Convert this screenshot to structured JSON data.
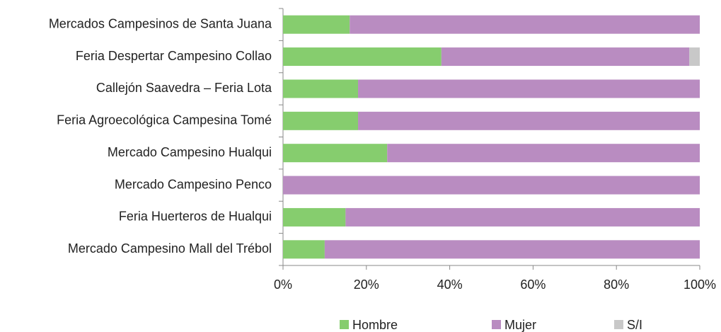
{
  "chart_data": {
    "type": "stacked-barh",
    "categories": [
      "Mercados Campesinos de Santa Juana",
      "Feria Despertar Campesino Collao",
      "Callejón Saavedra – Feria Lota",
      "Feria Agroecológica Campesina Tomé",
      "Mercado Campesino Hualqui",
      "Mercado Campesino Penco",
      "Feria Huerteros de Hualqui",
      "Mercado Campesino Mall del Trébol"
    ],
    "series": [
      {
        "name": "Hombre",
        "color": "#86cd6e",
        "values": [
          16,
          38,
          18,
          18,
          25,
          0,
          15,
          10
        ]
      },
      {
        "name": "Mujer",
        "color": "#b98cc1",
        "values": [
          84,
          59.5,
          82,
          82,
          75,
          100,
          85,
          90
        ]
      },
      {
        "name": "S/I",
        "color": "#c8c8c8",
        "values": [
          0,
          2.5,
          0,
          0,
          0,
          0,
          0,
          0
        ]
      }
    ],
    "xlim": [
      0,
      100
    ],
    "xticks": [
      {
        "value": 0,
        "label": "0%"
      },
      {
        "value": 20,
        "label": "20%"
      },
      {
        "value": 40,
        "label": "40%"
      },
      {
        "value": 60,
        "label": "60%"
      },
      {
        "value": 80,
        "label": "80%"
      },
      {
        "value": 100,
        "label": "100%"
      }
    ],
    "legend": "bottom"
  }
}
